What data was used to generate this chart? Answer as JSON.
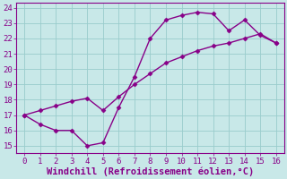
{
  "line1_x": [
    0,
    1,
    2,
    3,
    4,
    5,
    6,
    7,
    8,
    9,
    10,
    11,
    12,
    13,
    14,
    15,
    16
  ],
  "line1_y": [
    17.0,
    16.4,
    16.0,
    16.0,
    15.0,
    15.2,
    17.5,
    19.5,
    22.0,
    23.2,
    23.5,
    23.7,
    23.6,
    22.5,
    23.2,
    22.2,
    21.7
  ],
  "line2_x": [
    0,
    1,
    2,
    3,
    4,
    5,
    6,
    7,
    8,
    9,
    10,
    11,
    12,
    13,
    14,
    15,
    16
  ],
  "line2_y": [
    17.0,
    17.3,
    17.6,
    17.9,
    18.1,
    17.3,
    18.2,
    19.0,
    19.7,
    20.4,
    20.8,
    21.2,
    21.5,
    21.7,
    22.0,
    22.3,
    21.7
  ],
  "line_color": "#880088",
  "bg_color": "#c8e8e8",
  "grid_color": "#99cccc",
  "xlabel": "Windchill (Refroidissement éolien,°C)",
  "xlim": [
    -0.5,
    16.5
  ],
  "ylim": [
    14.5,
    24.3
  ],
  "xticks": [
    0,
    1,
    2,
    3,
    4,
    5,
    6,
    7,
    8,
    9,
    10,
    11,
    12,
    13,
    14,
    15,
    16
  ],
  "yticks": [
    15,
    16,
    17,
    18,
    19,
    20,
    21,
    22,
    23,
    24
  ],
  "marker": "D",
  "markersize": 2.5,
  "linewidth": 1.0,
  "xlabel_fontsize": 7.5,
  "tick_fontsize": 6.5,
  "tick_color": "#880088",
  "label_color": "#880088"
}
